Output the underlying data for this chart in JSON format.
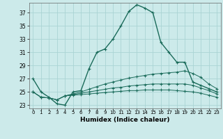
{
  "xlabel": "Humidex (Indice chaleur)",
  "bg_color": "#cceaea",
  "grid_color": "#aad4d4",
  "line_color": "#1a6b5a",
  "xlim": [
    -0.5,
    23.5
  ],
  "ylim": [
    22.5,
    38.5
  ],
  "yticks": [
    23,
    25,
    27,
    29,
    31,
    33,
    35,
    37
  ],
  "xticks": [
    0,
    1,
    2,
    3,
    4,
    5,
    6,
    7,
    8,
    9,
    10,
    11,
    12,
    13,
    14,
    15,
    16,
    17,
    18,
    19,
    20,
    21,
    22,
    23
  ],
  "xtick_labels": [
    "0",
    "1",
    "2",
    "3",
    "4",
    "5",
    "6",
    "7",
    "8",
    "9",
    "10",
    "11",
    "12",
    "13",
    "14",
    "15",
    "16",
    "17",
    "18",
    "19",
    "20",
    "21",
    "22",
    "23"
  ],
  "lines": [
    [
      27.0,
      25.0,
      24.2,
      23.2,
      23.0,
      25.0,
      25.2,
      28.5,
      31.0,
      31.5,
      33.0,
      35.0,
      37.2,
      38.2,
      37.7,
      37.0,
      32.5,
      31.0,
      29.5,
      29.5,
      26.5,
      26.0,
      25.5,
      25.0
    ],
    [
      25.0,
      24.2,
      24.1,
      23.8,
      24.4,
      24.7,
      25.0,
      25.4,
      25.8,
      26.2,
      26.5,
      26.8,
      27.1,
      27.3,
      27.5,
      27.7,
      27.8,
      27.9,
      28.0,
      28.2,
      27.8,
      27.2,
      26.2,
      25.5
    ],
    [
      25.0,
      24.2,
      24.1,
      23.8,
      24.4,
      24.6,
      24.8,
      25.0,
      25.2,
      25.4,
      25.6,
      25.7,
      25.9,
      26.0,
      26.1,
      26.2,
      26.2,
      26.2,
      26.2,
      26.2,
      26.0,
      25.6,
      25.2,
      24.7
    ],
    [
      25.0,
      24.2,
      24.1,
      23.8,
      24.4,
      24.5,
      24.6,
      24.7,
      24.8,
      24.9,
      25.0,
      25.1,
      25.2,
      25.2,
      25.3,
      25.3,
      25.3,
      25.3,
      25.2,
      25.1,
      25.0,
      24.8,
      24.5,
      24.2
    ]
  ]
}
